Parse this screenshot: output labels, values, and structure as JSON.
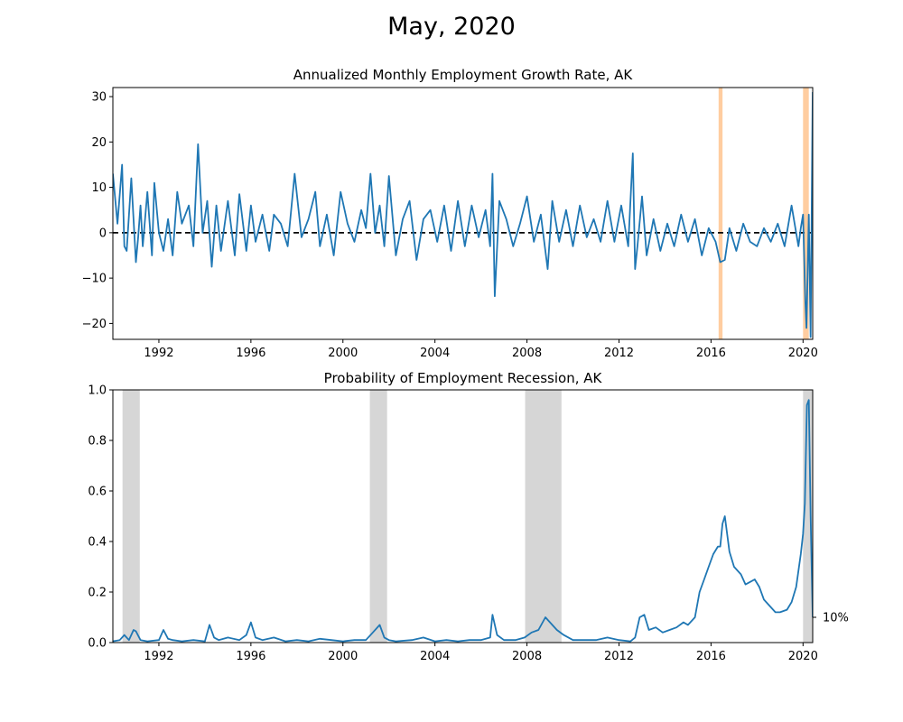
{
  "figure": {
    "title": "May, 2020"
  },
  "chart_data": [
    {
      "type": "line",
      "title": "Annualized Monthly Employment Growth Rate, AK",
      "xlabel": "",
      "ylabel": "",
      "xlim": [
        1990.0,
        2020.42
      ],
      "ylim": [
        -23.5,
        32
      ],
      "xticks": [
        1992,
        1996,
        2000,
        2004,
        2008,
        2012,
        2016,
        2020
      ],
      "xtick_labels": [
        "1992",
        "1996",
        "2000",
        "2004",
        "2008",
        "2012",
        "2016",
        "2020"
      ],
      "yticks": [
        -20,
        -10,
        0,
        10,
        20,
        30
      ],
      "ytick_labels": [
        "−20",
        "−10",
        "0",
        "10",
        "20",
        "30"
      ],
      "grid": false,
      "reference_line": {
        "y": 0,
        "style": "dashed",
        "color": "#000000"
      },
      "highlight_spans": [
        {
          "start": 2016.33,
          "end": 2016.5,
          "color": "#ffc896"
        },
        {
          "start": 2020.0,
          "end": 2020.25,
          "color": "#ffc896"
        }
      ],
      "series": [
        {
          "color": "#1f77b4",
          "x": [
            1990.0,
            1990.2,
            1990.4,
            1990.5,
            1990.6,
            1990.8,
            1991.0,
            1991.1,
            1991.2,
            1991.3,
            1991.5,
            1991.7,
            1991.8,
            1992.0,
            1992.2,
            1992.4,
            1992.6,
            1992.8,
            1993.0,
            1993.3,
            1993.5,
            1993.7,
            1993.9,
            1994.1,
            1994.3,
            1994.5,
            1994.7,
            1995.0,
            1995.3,
            1995.5,
            1995.8,
            1996.0,
            1996.2,
            1996.5,
            1996.8,
            1997.0,
            1997.3,
            1997.6,
            1997.9,
            1998.2,
            1998.5,
            1998.8,
            1999.0,
            1999.3,
            1999.6,
            1999.9,
            2000.2,
            2000.5,
            2000.8,
            2001.0,
            2001.2,
            2001.4,
            2001.6,
            2001.8,
            2002.0,
            2002.3,
            2002.6,
            2002.9,
            2003.2,
            2003.5,
            2003.8,
            2004.1,
            2004.4,
            2004.7,
            2005.0,
            2005.3,
            2005.6,
            2005.9,
            2006.2,
            2006.4,
            2006.5,
            2006.6,
            2006.8,
            2007.1,
            2007.4,
            2007.7,
            2008.0,
            2008.3,
            2008.6,
            2008.9,
            2009.1,
            2009.4,
            2009.7,
            2010.0,
            2010.3,
            2010.6,
            2010.9,
            2011.2,
            2011.5,
            2011.8,
            2012.1,
            2012.4,
            2012.6,
            2012.7,
            2012.8,
            2013.0,
            2013.2,
            2013.5,
            2013.8,
            2014.1,
            2014.4,
            2014.7,
            2015.0,
            2015.3,
            2015.6,
            2015.9,
            2016.2,
            2016.4,
            2016.6,
            2016.8,
            2017.1,
            2017.4,
            2017.7,
            2018.0,
            2018.3,
            2018.6,
            2018.9,
            2019.2,
            2019.5,
            2019.8,
            2019.9,
            2020.0,
            2020.1,
            2020.15,
            2020.25,
            2020.33,
            2020.42
          ],
          "y": [
            13,
            2,
            15,
            -3,
            -4,
            12,
            -6.5,
            -1,
            6,
            -3,
            9,
            -5,
            11,
            0,
            -4,
            3,
            -5,
            9,
            2,
            6,
            -3,
            19.5,
            0,
            7,
            -7.5,
            6,
            -4,
            7,
            -5,
            8.5,
            -4,
            6,
            -2,
            4,
            -4,
            4,
            2,
            -3,
            13,
            -1,
            3,
            9,
            -3,
            4,
            -5,
            9,
            2,
            -2,
            5,
            1,
            13,
            0,
            6,
            -3,
            12.5,
            -5,
            3,
            7,
            -6,
            3,
            5,
            -2,
            6,
            -4,
            7,
            -3,
            6,
            -1,
            5,
            -3,
            13,
            -14,
            7,
            3,
            -3,
            2,
            8,
            -2,
            4,
            -8,
            7,
            -2,
            5,
            -3,
            6,
            -1,
            3,
            -2,
            7,
            -2,
            6,
            -3,
            17.5,
            -8,
            -3,
            8,
            -5,
            3,
            -4,
            2,
            -3,
            4,
            -2,
            3,
            -5,
            1,
            -2,
            -6.5,
            -6,
            1,
            -4,
            2,
            -2,
            -3,
            1,
            -2,
            2,
            -3,
            6,
            -3,
            1,
            4,
            -15,
            -21,
            4,
            -23,
            31
          ]
        }
      ]
    },
    {
      "type": "line",
      "title": "Probability of Employment Recession, AK",
      "xlabel": "",
      "ylabel": "",
      "xlim": [
        1990.0,
        2020.42
      ],
      "ylim": [
        0.0,
        1.0
      ],
      "xticks": [
        1992,
        1996,
        2000,
        2004,
        2008,
        2012,
        2016,
        2020
      ],
      "xtick_labels": [
        "1992",
        "1996",
        "2000",
        "2004",
        "2008",
        "2012",
        "2016",
        "2020"
      ],
      "yticks": [
        0.0,
        0.2,
        0.4,
        0.6,
        0.8,
        1.0
      ],
      "ytick_labels": [
        "0.0",
        "0.2",
        "0.4",
        "0.6",
        "0.8",
        "1.0"
      ],
      "grid": false,
      "right_axis_marker": {
        "y": 0.1,
        "label": "10%"
      },
      "recession_spans": [
        {
          "start": 1990.42,
          "end": 1991.17,
          "color": "#b4b4b4"
        },
        {
          "start": 2001.17,
          "end": 2001.92,
          "color": "#b4b4b4"
        },
        {
          "start": 2007.92,
          "end": 2009.5,
          "color": "#b4b4b4"
        },
        {
          "start": 2020.0,
          "end": 2020.42,
          "color": "#b4b4b4"
        }
      ],
      "series": [
        {
          "color": "#1f77b4",
          "x": [
            1990.0,
            1990.3,
            1990.5,
            1990.7,
            1990.9,
            1991.0,
            1991.2,
            1991.5,
            1992.0,
            1992.2,
            1992.4,
            1992.6,
            1993.0,
            1993.5,
            1994.0,
            1994.2,
            1994.4,
            1994.6,
            1995.0,
            1995.5,
            1995.8,
            1996.0,
            1996.2,
            1996.5,
            1997.0,
            1997.5,
            1998.0,
            1998.5,
            1999.0,
            1999.5,
            2000.0,
            2000.5,
            2001.0,
            2001.3,
            2001.6,
            2001.8,
            2002.0,
            2002.3,
            2003.0,
            2003.5,
            2004.0,
            2004.5,
            2005.0,
            2005.5,
            2006.0,
            2006.4,
            2006.5,
            2006.7,
            2007.0,
            2007.5,
            2007.9,
            2008.2,
            2008.5,
            2008.8,
            2009.0,
            2009.3,
            2009.6,
            2010.0,
            2010.5,
            2011.0,
            2011.5,
            2012.0,
            2012.5,
            2012.7,
            2012.9,
            2013.1,
            2013.3,
            2013.6,
            2013.9,
            2014.2,
            2014.5,
            2014.8,
            2015.0,
            2015.3,
            2015.5,
            2015.7,
            2015.9,
            2016.1,
            2016.3,
            2016.4,
            2016.5,
            2016.6,
            2016.8,
            2017.0,
            2017.3,
            2017.5,
            2017.7,
            2017.9,
            2018.1,
            2018.3,
            2018.5,
            2018.8,
            2019.0,
            2019.3,
            2019.5,
            2019.7,
            2019.9,
            2020.0,
            2020.08,
            2020.17,
            2020.25,
            2020.33,
            2020.42
          ],
          "y": [
            0.005,
            0.01,
            0.03,
            0.01,
            0.05,
            0.045,
            0.01,
            0.005,
            0.01,
            0.05,
            0.015,
            0.01,
            0.005,
            0.01,
            0.005,
            0.07,
            0.02,
            0.01,
            0.02,
            0.01,
            0.03,
            0.08,
            0.02,
            0.01,
            0.02,
            0.005,
            0.01,
            0.005,
            0.015,
            0.01,
            0.005,
            0.01,
            0.01,
            0.04,
            0.07,
            0.02,
            0.01,
            0.005,
            0.01,
            0.02,
            0.005,
            0.01,
            0.005,
            0.01,
            0.01,
            0.02,
            0.11,
            0.03,
            0.01,
            0.01,
            0.02,
            0.04,
            0.05,
            0.1,
            0.08,
            0.05,
            0.03,
            0.01,
            0.01,
            0.01,
            0.02,
            0.01,
            0.005,
            0.02,
            0.1,
            0.11,
            0.05,
            0.06,
            0.04,
            0.05,
            0.06,
            0.08,
            0.07,
            0.1,
            0.2,
            0.25,
            0.3,
            0.35,
            0.38,
            0.38,
            0.47,
            0.5,
            0.36,
            0.3,
            0.27,
            0.23,
            0.24,
            0.25,
            0.22,
            0.17,
            0.15,
            0.12,
            0.12,
            0.13,
            0.16,
            0.22,
            0.35,
            0.43,
            0.55,
            0.94,
            0.96,
            0.5,
            0.1
          ]
        }
      ]
    }
  ]
}
